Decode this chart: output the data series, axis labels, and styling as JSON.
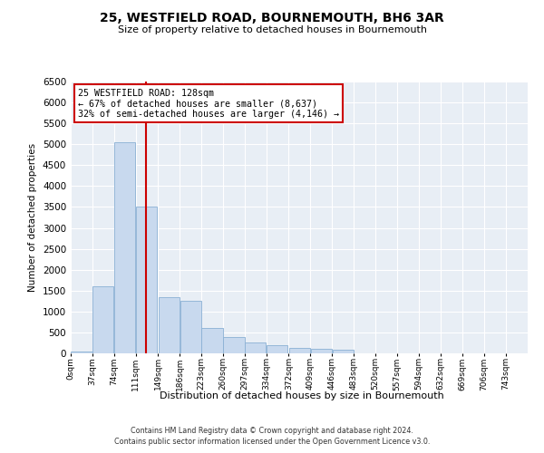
{
  "title": "25, WESTFIELD ROAD, BOURNEMOUTH, BH6 3AR",
  "subtitle": "Size of property relative to detached houses in Bournemouth",
  "xlabel": "Distribution of detached houses by size in Bournemouth",
  "ylabel": "Number of detached properties",
  "footer_line1": "Contains HM Land Registry data © Crown copyright and database right 2024.",
  "footer_line2": "Contains public sector information licensed under the Open Government Licence v3.0.",
  "annotation_title": "25 WESTFIELD ROAD: 128sqm",
  "annotation_line1": "← 67% of detached houses are smaller (8,637)",
  "annotation_line2": "32% of semi-detached houses are larger (4,146) →",
  "property_size_sqm": 128,
  "bar_color": "#c8d9ee",
  "bar_edge_color": "#8ab0d4",
  "vline_color": "#cc0000",
  "background_color": "#e8eef5",
  "categories": [
    "0sqm",
    "37sqm",
    "74sqm",
    "111sqm",
    "149sqm",
    "186sqm",
    "223sqm",
    "260sqm",
    "297sqm",
    "334sqm",
    "372sqm",
    "409sqm",
    "446sqm",
    "483sqm",
    "520sqm",
    "557sqm",
    "594sqm",
    "632sqm",
    "669sqm",
    "706sqm",
    "743sqm"
  ],
  "bar_edges": [
    0,
    37,
    74,
    111,
    149,
    186,
    223,
    260,
    297,
    334,
    372,
    409,
    446,
    483,
    520,
    557,
    594,
    632,
    669,
    706,
    743,
    780
  ],
  "values": [
    50,
    1600,
    5050,
    3500,
    1350,
    1250,
    600,
    400,
    270,
    200,
    140,
    100,
    95,
    0,
    0,
    0,
    0,
    0,
    0,
    0,
    0
  ],
  "ylim": [
    0,
    6500
  ],
  "yticks": [
    0,
    500,
    1000,
    1500,
    2000,
    2500,
    3000,
    3500,
    4000,
    4500,
    5000,
    5500,
    6000,
    6500
  ]
}
